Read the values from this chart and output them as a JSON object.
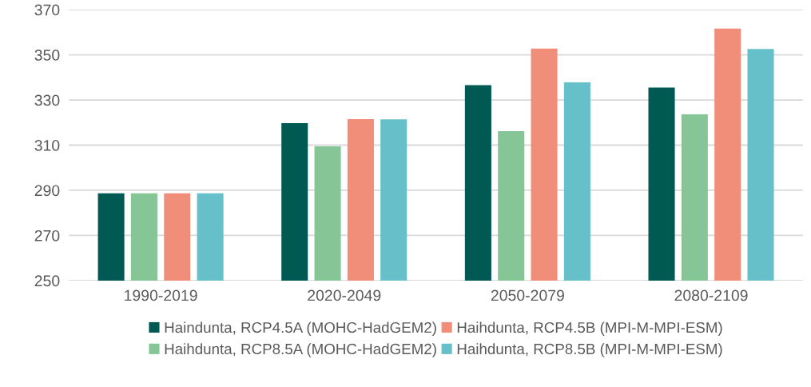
{
  "chart_data": {
    "type": "bar",
    "categories": [
      "1990-2019",
      "2020-2049",
      "2050-2079",
      "2080-2109"
    ],
    "series": [
      {
        "name": "Haindunta, RCP4.5A (MOHC-HadGEM2)",
        "color": "#015954",
        "values": [
          288.7,
          319.7,
          336.6,
          335.5
        ]
      },
      {
        "name": "Haihdunta, RCP8.5A (MOHC-HadGEM2)",
        "color": "#86c596",
        "values": [
          288.7,
          309.5,
          316.2,
          323.6
        ]
      },
      {
        "name": "Haihdunta, RCP4.5B (MPI-M-MPI-ESM)",
        "color": "#f18e7a",
        "values": [
          288.7,
          321.5,
          352.8,
          361.6
        ]
      },
      {
        "name": "Haihdunta, RCP8.5B (MPI-M-MPI-ESM)",
        "color": "#65c0c9",
        "values": [
          288.7,
          321.4,
          337.8,
          352.6
        ]
      }
    ],
    "ylim": [
      250,
      370
    ],
    "yticks": [
      250,
      270,
      290,
      310,
      330,
      350,
      370
    ],
    "grid": "y",
    "legend": "bottom"
  }
}
